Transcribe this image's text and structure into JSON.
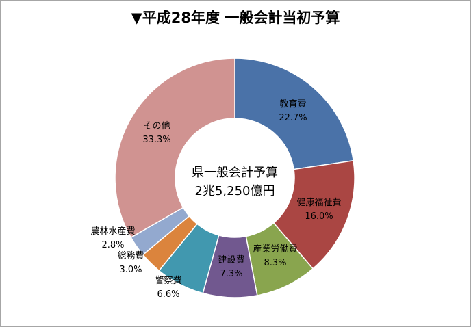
{
  "chart_data": {
    "type": "pie",
    "style": "donut",
    "title": "▼平成28年度 一般会計当初予算",
    "center_text": [
      "県一般会計予算",
      "2兆5,250億円"
    ],
    "slices": [
      {
        "label": "教育費",
        "value": 22.7,
        "value_label": "22.7%",
        "color": "#4a72a8"
      },
      {
        "label": "健康福祉費",
        "value": 16.0,
        "value_label": "16.0%",
        "color": "#aa4643"
      },
      {
        "label": "産業労働費",
        "value": 8.3,
        "value_label": "8.3%",
        "color": "#89a54e"
      },
      {
        "label": "建設費",
        "value": 7.3,
        "value_label": "7.3%",
        "color": "#71588f"
      },
      {
        "label": "警察費",
        "value": 6.6,
        "value_label": "6.6%",
        "color": "#4198af"
      },
      {
        "label": "総務費",
        "value": 3.0,
        "value_label": "3.0%",
        "color": "#db843d"
      },
      {
        "label": "農林水産費",
        "value": 2.8,
        "value_label": "2.8%",
        "color": "#93a9cf"
      },
      {
        "label": "その他",
        "value": 33.3,
        "value_label": "33.3%",
        "color": "#d09391"
      }
    ]
  }
}
